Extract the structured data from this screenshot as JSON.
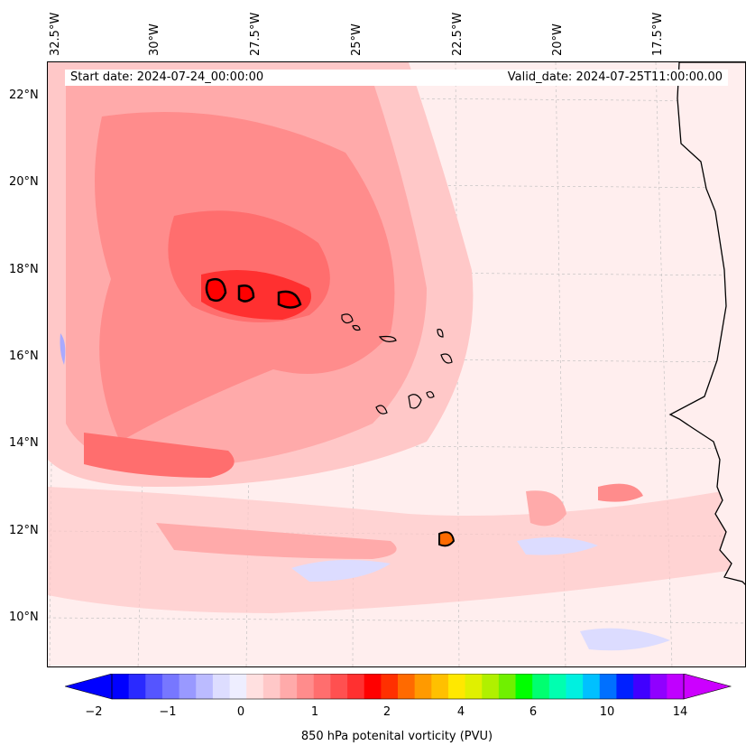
{
  "map": {
    "longitude_labels": [
      "32.5°W",
      "30°W",
      "27.5°W",
      "25°W",
      "22.5°W",
      "20°W",
      "17.5°W"
    ],
    "latitude_labels": [
      "22°N",
      "20°N",
      "18°N",
      "16°N",
      "14°N",
      "12°N",
      "10°N"
    ],
    "start_date": "Start date: 2024-07-24_00:00:00",
    "valid_date": "Valid_date: 2024-07-25T11:00:00.00",
    "colors": {
      "land_outline": "#000000",
      "background_field": "#ffeeee",
      "weak_negative": "#dcdcff",
      "moderate_positive": "#ffb4b4",
      "strong_positive": "#ff3030"
    }
  },
  "colorbar": {
    "tick_labels": [
      "−2",
      "−1",
      "0",
      "1",
      "2",
      "4",
      "6",
      "10",
      "14"
    ],
    "label": "850 hPa potenital vorticity (PVU)",
    "colors": [
      "#0000ff",
      "#2a2aff",
      "#5555ff",
      "#7777ff",
      "#9999ff",
      "#bbbbff",
      "#ddddff",
      "#eeeeff",
      "#ffe0e0",
      "#ffc8c8",
      "#ffaaaa",
      "#ff8c8c",
      "#ff6e6e",
      "#ff5050",
      "#ff3030",
      "#ff0000",
      "#ff3000",
      "#ff6a00",
      "#ff9a00",
      "#ffc000",
      "#ffe800",
      "#e0f000",
      "#b0f000",
      "#70f000",
      "#00ff00",
      "#00ff70",
      "#00ffb0",
      "#00f0e0",
      "#00c0ff",
      "#0070ff",
      "#0020ff",
      "#4000ff",
      "#9000ff",
      "#c000ff"
    ]
  }
}
